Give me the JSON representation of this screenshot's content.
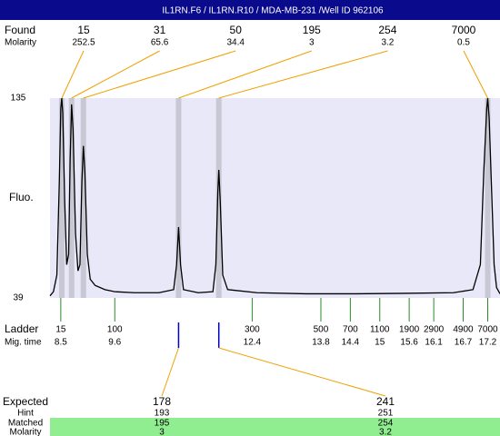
{
  "title": "IL1RN.F6 / IL1RN.R10 / MDA-MB-231 /Well ID 962106",
  "found": {
    "label": "Found",
    "molarity_label": "Molarity",
    "sizes": [
      15,
      31,
      50,
      195,
      254,
      7000
    ],
    "molarity": [
      252.5,
      65.6,
      34.4,
      3,
      3.2,
      0.5
    ]
  },
  "chart_data": {
    "type": "line",
    "y_label": "Fluo.",
    "color": "#000000",
    "x": [
      8.28,
      8.35,
      8.42,
      8.47,
      8.5,
      8.52,
      8.54,
      8.58,
      8.62,
      8.66,
      8.69,
      8.72,
      8.75,
      8.8,
      8.85,
      8.89,
      8.93,
      8.96,
      8.99,
      9.04,
      9.1,
      9.2,
      9.4,
      9.6,
      10.0,
      10.5,
      10.8,
      10.86,
      10.9,
      10.94,
      11.0,
      11.3,
      11.6,
      11.66,
      11.7,
      11.72,
      11.75,
      11.8,
      11.9,
      12.5,
      13.5,
      14.5,
      15.5,
      16.5,
      16.9,
      17.05,
      17.12,
      17.18,
      17.2,
      17.23,
      17.28,
      17.33,
      17.38,
      17.45
    ],
    "values": [
      40,
      42,
      50,
      95,
      130,
      135,
      128,
      85,
      55,
      60,
      105,
      132,
      120,
      70,
      52,
      55,
      95,
      112,
      100,
      60,
      48,
      45,
      43,
      42,
      41.5,
      41.5,
      43,
      55,
      73,
      55,
      43,
      41.5,
      42,
      55,
      90,
      100.5,
      85,
      50,
      43,
      41.5,
      41,
      41,
      41.2,
      41.5,
      43,
      55,
      100,
      130,
      135,
      125,
      90,
      55,
      44,
      41
    ],
    "peak_x": [
      8.52,
      8.72,
      8.96,
      10.9,
      11.72,
      17.2
    ],
    "xlim": [
      8.28,
      17.45
    ],
    "ylim": [
      39,
      135
    ],
    "yticks": [
      39,
      135
    ]
  },
  "ladder": {
    "label": "Ladder",
    "time_label": "Mig. time",
    "sizes": [
      15,
      100,
      300,
      500,
      700,
      1100,
      1900,
      2900,
      4900,
      7000
    ],
    "times": [
      8.5,
      9.6,
      12.4,
      13.8,
      14.4,
      15,
      15.6,
      16.1,
      16.7,
      17.2
    ]
  },
  "expected": {
    "label": "Expected",
    "hint_label": "Hint",
    "matched_label": "Matched",
    "molarity_label": "Molarity",
    "sizes": [
      178,
      241
    ],
    "hints": [
      193,
      251
    ],
    "matched": [
      195,
      254
    ],
    "molarity": [
      3,
      3.2
    ]
  }
}
